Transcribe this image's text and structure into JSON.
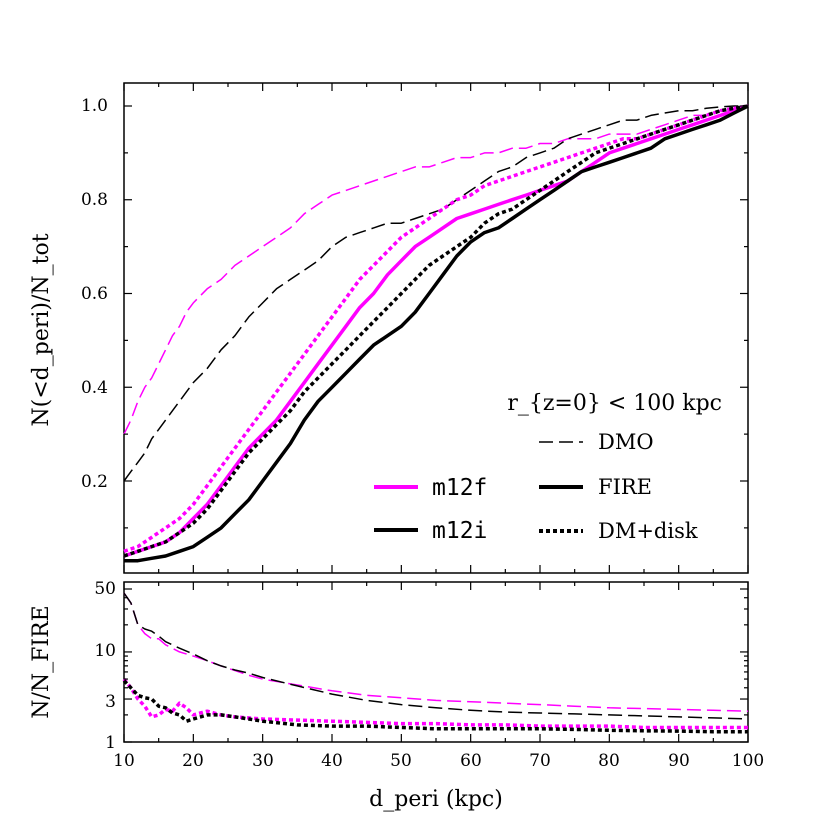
{
  "chart_data": {
    "type": "line",
    "main": {
      "ylabel": "N(<d_peri)/N_tot",
      "xlim": [
        10,
        100
      ],
      "ylim": [
        0.02,
        1.05
      ],
      "yticks": [
        "0.2",
        "0.4",
        "0.6",
        "0.8",
        "1.0"
      ],
      "series": [
        {
          "name": "m12f DMO",
          "color": "#ff00ff",
          "style": "dmo",
          "x": [
            10,
            11,
            12,
            13,
            14,
            15,
            16,
            17,
            18,
            19,
            20,
            22,
            24,
            26,
            28,
            30,
            32,
            34,
            36,
            38,
            40,
            42,
            44,
            46,
            48,
            50,
            52,
            54,
            56,
            58,
            60,
            62,
            64,
            66,
            68,
            70,
            72,
            74,
            76,
            78,
            80,
            82,
            84,
            86,
            88,
            90,
            92,
            94,
            96,
            98,
            100
          ],
          "y": [
            0.3,
            0.33,
            0.37,
            0.4,
            0.42,
            0.45,
            0.48,
            0.51,
            0.53,
            0.56,
            0.58,
            0.61,
            0.63,
            0.66,
            0.68,
            0.7,
            0.72,
            0.74,
            0.77,
            0.79,
            0.81,
            0.82,
            0.83,
            0.84,
            0.85,
            0.86,
            0.87,
            0.87,
            0.88,
            0.89,
            0.89,
            0.9,
            0.9,
            0.91,
            0.91,
            0.92,
            0.92,
            0.93,
            0.93,
            0.93,
            0.94,
            0.94,
            0.94,
            0.95,
            0.96,
            0.97,
            0.98,
            0.98,
            0.99,
            0.995,
            1.0
          ]
        },
        {
          "name": "m12i DMO",
          "color": "#000000",
          "style": "dmo",
          "x": [
            10,
            11,
            12,
            13,
            14,
            15,
            16,
            17,
            18,
            19,
            20,
            22,
            24,
            26,
            28,
            30,
            32,
            34,
            36,
            38,
            40,
            42,
            44,
            46,
            48,
            50,
            52,
            54,
            56,
            58,
            60,
            62,
            64,
            66,
            68,
            70,
            72,
            74,
            76,
            78,
            80,
            82,
            84,
            86,
            88,
            90,
            92,
            94,
            96,
            98,
            100
          ],
          "y": [
            0.2,
            0.22,
            0.24,
            0.26,
            0.29,
            0.31,
            0.33,
            0.35,
            0.37,
            0.39,
            0.41,
            0.44,
            0.48,
            0.51,
            0.55,
            0.58,
            0.61,
            0.63,
            0.65,
            0.67,
            0.7,
            0.72,
            0.73,
            0.74,
            0.75,
            0.75,
            0.76,
            0.77,
            0.78,
            0.8,
            0.82,
            0.84,
            0.86,
            0.87,
            0.89,
            0.9,
            0.91,
            0.93,
            0.94,
            0.95,
            0.96,
            0.97,
            0.97,
            0.98,
            0.985,
            0.99,
            0.99,
            0.995,
            0.998,
            1.0,
            1.0
          ]
        },
        {
          "name": "m12f DM+disk",
          "color": "#ff00ff",
          "style": "disk",
          "x": [
            10,
            12,
            14,
            16,
            18,
            20,
            22,
            24,
            26,
            28,
            30,
            32,
            34,
            36,
            38,
            40,
            42,
            44,
            46,
            48,
            50,
            52,
            54,
            56,
            58,
            60,
            62,
            64,
            66,
            68,
            70,
            72,
            74,
            76,
            78,
            80,
            82,
            84,
            86,
            88,
            90,
            92,
            94,
            96,
            98,
            100
          ],
          "y": [
            0.05,
            0.06,
            0.08,
            0.1,
            0.12,
            0.15,
            0.19,
            0.23,
            0.27,
            0.31,
            0.35,
            0.39,
            0.43,
            0.47,
            0.51,
            0.55,
            0.59,
            0.63,
            0.66,
            0.69,
            0.72,
            0.74,
            0.76,
            0.78,
            0.8,
            0.81,
            0.83,
            0.84,
            0.85,
            0.86,
            0.87,
            0.88,
            0.89,
            0.9,
            0.91,
            0.92,
            0.93,
            0.93,
            0.94,
            0.95,
            0.96,
            0.97,
            0.98,
            0.99,
            0.995,
            1.0
          ]
        },
        {
          "name": "m12f FIRE",
          "color": "#ff00ff",
          "style": "fire",
          "x": [
            10,
            12,
            14,
            16,
            18,
            20,
            22,
            24,
            26,
            28,
            30,
            32,
            34,
            36,
            38,
            40,
            42,
            44,
            46,
            48,
            50,
            52,
            54,
            56,
            58,
            60,
            62,
            64,
            66,
            68,
            70,
            72,
            74,
            76,
            78,
            80,
            82,
            84,
            86,
            88,
            90,
            92,
            94,
            96,
            98,
            100
          ],
          "y": [
            0.04,
            0.05,
            0.06,
            0.07,
            0.09,
            0.12,
            0.15,
            0.19,
            0.23,
            0.27,
            0.3,
            0.33,
            0.37,
            0.41,
            0.45,
            0.49,
            0.53,
            0.57,
            0.6,
            0.64,
            0.67,
            0.7,
            0.72,
            0.74,
            0.76,
            0.77,
            0.78,
            0.79,
            0.8,
            0.81,
            0.82,
            0.83,
            0.84,
            0.86,
            0.88,
            0.9,
            0.91,
            0.92,
            0.93,
            0.94,
            0.95,
            0.96,
            0.97,
            0.98,
            0.99,
            1.0
          ]
        },
        {
          "name": "m12i DM+disk",
          "color": "#000000",
          "style": "disk",
          "x": [
            10,
            12,
            14,
            16,
            18,
            20,
            22,
            24,
            26,
            28,
            30,
            32,
            34,
            36,
            38,
            40,
            42,
            44,
            46,
            48,
            50,
            52,
            54,
            56,
            58,
            60,
            62,
            64,
            66,
            68,
            70,
            72,
            74,
            76,
            78,
            80,
            82,
            84,
            86,
            88,
            90,
            92,
            94,
            96,
            98,
            100
          ],
          "y": [
            0.04,
            0.05,
            0.06,
            0.07,
            0.09,
            0.11,
            0.14,
            0.18,
            0.22,
            0.26,
            0.29,
            0.32,
            0.35,
            0.39,
            0.42,
            0.45,
            0.48,
            0.51,
            0.54,
            0.57,
            0.6,
            0.63,
            0.66,
            0.68,
            0.7,
            0.72,
            0.75,
            0.77,
            0.78,
            0.8,
            0.82,
            0.84,
            0.86,
            0.88,
            0.9,
            0.91,
            0.92,
            0.93,
            0.94,
            0.95,
            0.96,
            0.97,
            0.98,
            0.99,
            0.995,
            1.0
          ]
        },
        {
          "name": "m12i FIRE",
          "color": "#000000",
          "style": "fire",
          "x": [
            10,
            12,
            14,
            16,
            18,
            20,
            22,
            24,
            26,
            28,
            30,
            32,
            34,
            36,
            38,
            40,
            42,
            44,
            46,
            48,
            50,
            52,
            54,
            56,
            58,
            60,
            62,
            64,
            66,
            68,
            70,
            72,
            74,
            76,
            78,
            80,
            82,
            84,
            86,
            88,
            90,
            92,
            94,
            96,
            98,
            100
          ],
          "y": [
            0.03,
            0.03,
            0.035,
            0.04,
            0.05,
            0.06,
            0.08,
            0.1,
            0.13,
            0.16,
            0.2,
            0.24,
            0.28,
            0.33,
            0.37,
            0.4,
            0.43,
            0.46,
            0.49,
            0.51,
            0.53,
            0.56,
            0.6,
            0.64,
            0.68,
            0.71,
            0.73,
            0.74,
            0.76,
            0.78,
            0.8,
            0.82,
            0.84,
            0.86,
            0.87,
            0.88,
            0.89,
            0.9,
            0.91,
            0.93,
            0.94,
            0.95,
            0.96,
            0.97,
            0.985,
            1.0
          ]
        }
      ]
    },
    "ratio": {
      "ylabel": "N/N_FIRE",
      "scale": "log",
      "ylim": [
        1,
        50
      ],
      "yticks": [
        "1",
        "3",
        "10",
        "50"
      ],
      "series": [
        {
          "name": "m12f DMO ratio",
          "color": "#ff00ff",
          "style": "dmo",
          "x": [
            10,
            11,
            12,
            13,
            14,
            15,
            16,
            18,
            20,
            22,
            24,
            26,
            28,
            30,
            35,
            40,
            45,
            50,
            55,
            60,
            65,
            70,
            75,
            80,
            85,
            90,
            95,
            100
          ],
          "y": [
            45,
            35,
            20,
            16,
            14,
            14,
            12,
            10,
            9,
            8,
            7,
            6.2,
            5.5,
            5.0,
            4.3,
            3.7,
            3.3,
            3.1,
            2.9,
            2.8,
            2.7,
            2.6,
            2.5,
            2.4,
            2.35,
            2.3,
            2.25,
            2.2
          ]
        },
        {
          "name": "m12i DMO ratio",
          "color": "#000000",
          "style": "dmo",
          "x": [
            10,
            11,
            12,
            13,
            14,
            15,
            16,
            18,
            20,
            22,
            24,
            26,
            28,
            30,
            35,
            40,
            45,
            50,
            55,
            60,
            65,
            70,
            75,
            80,
            85,
            90,
            95,
            100
          ],
          "y": [
            45,
            35,
            20,
            18,
            17,
            15,
            13,
            11,
            9.5,
            8,
            7,
            6.3,
            5.8,
            5.2,
            4.2,
            3.4,
            2.9,
            2.6,
            2.4,
            2.25,
            2.15,
            2.1,
            2.05,
            2.0,
            1.95,
            1.9,
            1.85,
            1.8
          ]
        },
        {
          "name": "m12f DM+disk ratio",
          "color": "#ff00ff",
          "style": "disk",
          "x": [
            10,
            11,
            12,
            13,
            14,
            15,
            16,
            17,
            18,
            19,
            20,
            22,
            24,
            26,
            28,
            30,
            35,
            40,
            45,
            50,
            55,
            60,
            65,
            70,
            75,
            80,
            85,
            90,
            95,
            100
          ],
          "y": [
            5.0,
            4.0,
            3.0,
            2.5,
            1.9,
            2.0,
            2.3,
            2.2,
            2.7,
            2.4,
            2.0,
            2.2,
            2.0,
            1.9,
            1.85,
            1.8,
            1.75,
            1.7,
            1.65,
            1.6,
            1.6,
            1.55,
            1.55,
            1.5,
            1.5,
            1.5,
            1.45,
            1.45,
            1.45,
            1.45
          ]
        },
        {
          "name": "m12i DM+disk ratio",
          "color": "#000000",
          "style": "disk",
          "x": [
            10,
            11,
            12,
            13,
            14,
            15,
            16,
            17,
            18,
            19,
            20,
            22,
            24,
            26,
            28,
            30,
            35,
            40,
            45,
            50,
            55,
            60,
            65,
            70,
            75,
            80,
            85,
            90,
            95,
            100
          ],
          "y": [
            4.8,
            4.0,
            3.3,
            3.1,
            3.0,
            2.5,
            2.4,
            2.1,
            2.0,
            1.7,
            1.8,
            2.0,
            2.0,
            1.9,
            1.8,
            1.7,
            1.55,
            1.5,
            1.5,
            1.45,
            1.4,
            1.4,
            1.4,
            1.4,
            1.38,
            1.35,
            1.33,
            1.32,
            1.3,
            1.3
          ]
        }
      ]
    },
    "xlabel": "d_peri (kpc)",
    "xticks": [
      "10",
      "20",
      "30",
      "40",
      "50",
      "60",
      "70",
      "80",
      "90",
      "100"
    ],
    "annotation": "r_{z=0} < 100 kpc",
    "legend": {
      "position": "lower-right",
      "hosts": [
        {
          "label": "m12f",
          "color": "#ff00ff"
        },
        {
          "label": "m12i",
          "color": "#000000"
        }
      ],
      "styles": [
        {
          "label": "DMO",
          "style": "dmo"
        },
        {
          "label": "FIRE",
          "style": "fire"
        },
        {
          "label": "DM+disk",
          "style": "disk"
        }
      ]
    }
  }
}
